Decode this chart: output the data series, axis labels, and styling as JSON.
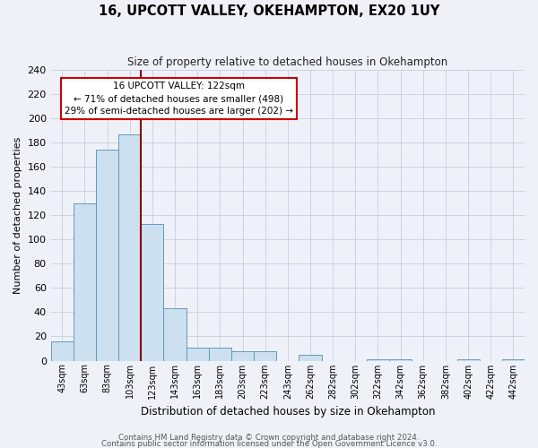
{
  "title": "16, UPCOTT VALLEY, OKEHAMPTON, EX20 1UY",
  "subtitle": "Size of property relative to detached houses in Okehampton",
  "xlabel": "Distribution of detached houses by size in Okehampton",
  "ylabel": "Number of detached properties",
  "bin_labels": [
    "43sqm",
    "63sqm",
    "83sqm",
    "103sqm",
    "123sqm",
    "143sqm",
    "163sqm",
    "183sqm",
    "203sqm",
    "223sqm",
    "243sqm",
    "262sqm",
    "282sqm",
    "302sqm",
    "322sqm",
    "342sqm",
    "362sqm",
    "382sqm",
    "402sqm",
    "422sqm",
    "442sqm"
  ],
  "bar_values": [
    16,
    130,
    174,
    187,
    113,
    43,
    11,
    11,
    8,
    8,
    0,
    5,
    0,
    0,
    1,
    1,
    0,
    0,
    1,
    0,
    1
  ],
  "bar_color": "#cce0f0",
  "bar_edge_color": "#6699bb",
  "vline_bin_index": 4,
  "vline_color": "#880000",
  "ylim": [
    0,
    240
  ],
  "yticks": [
    0,
    20,
    40,
    60,
    80,
    100,
    120,
    140,
    160,
    180,
    200,
    220,
    240
  ],
  "annotation_title": "16 UPCOTT VALLEY: 122sqm",
  "annotation_line1": "← 71% of detached houses are smaller (498)",
  "annotation_line2": "29% of semi-detached houses are larger (202) →",
  "annotation_box_color": "#ffffff",
  "annotation_box_edge": "#cc0000",
  "footer1": "Contains HM Land Registry data © Crown copyright and database right 2024.",
  "footer2": "Contains public sector information licensed under the Open Government Licence v3.0.",
  "background_color": "#eef2f8",
  "grid_color": "#c8cedd"
}
